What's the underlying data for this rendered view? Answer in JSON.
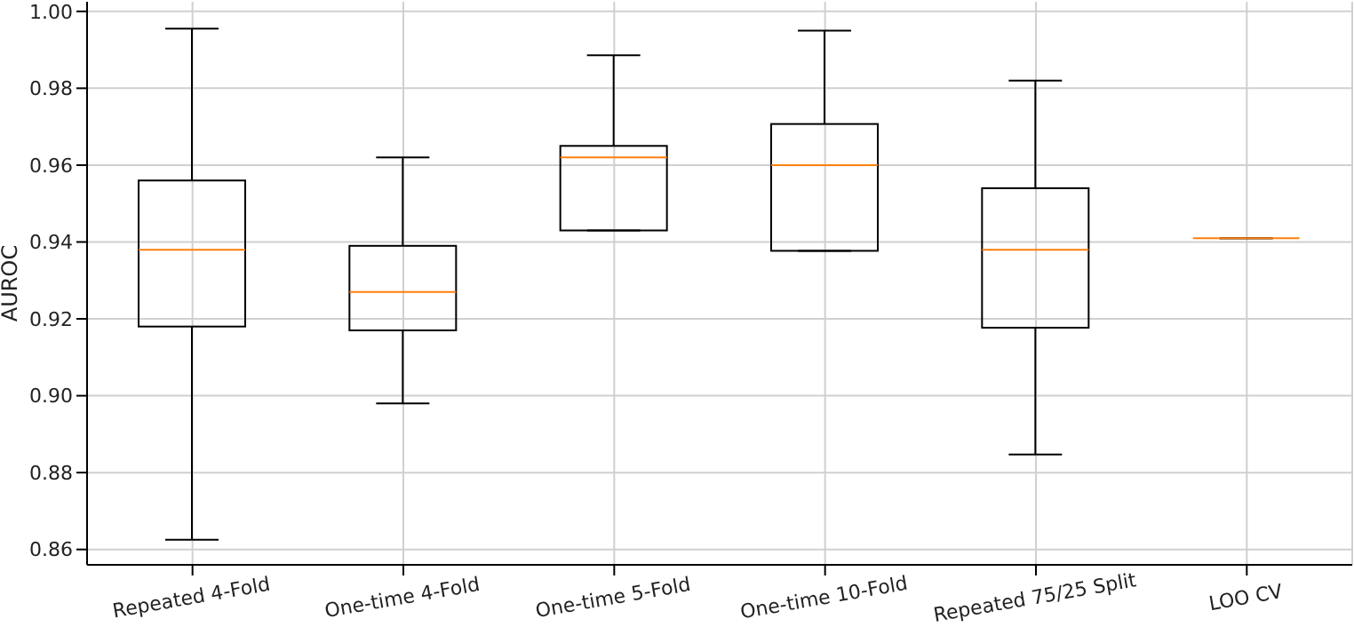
{
  "chart_data": {
    "type": "box",
    "ylabel": "AUROC",
    "categories": [
      "Repeated 4-Fold",
      "One-time 4-Fold",
      "One-time 5-Fold",
      "One-time 10-Fold",
      "Repeated 75/25 Split",
      "LOO CV"
    ],
    "boxes": [
      {
        "low": 0.8625,
        "q1": 0.918,
        "median": 0.938,
        "q3": 0.956,
        "high": 0.9955
      },
      {
        "low": 0.898,
        "q1": 0.917,
        "median": 0.927,
        "q3": 0.939,
        "high": 0.962
      },
      {
        "low": 0.943,
        "q1": 0.943,
        "median": 0.962,
        "q3": 0.965,
        "high": 0.9886
      },
      {
        "low": 0.9377,
        "q1": 0.9377,
        "median": 0.96,
        "q3": 0.9707,
        "high": 0.995
      },
      {
        "low": 0.8847,
        "q1": 0.9177,
        "median": 0.938,
        "q3": 0.954,
        "high": 0.982
      },
      {
        "low": 0.941,
        "q1": 0.941,
        "median": 0.941,
        "q3": 0.941,
        "high": 0.941
      }
    ],
    "ylim": [
      0.856,
      1.0025
    ],
    "yticks": [
      0.86,
      0.88,
      {
        "value": 0.9,
        "label": "0.90"
      },
      0.92,
      0.94,
      0.96,
      0.98,
      {
        "value": 1.0,
        "label": "1.00"
      }
    ],
    "grid": true
  }
}
